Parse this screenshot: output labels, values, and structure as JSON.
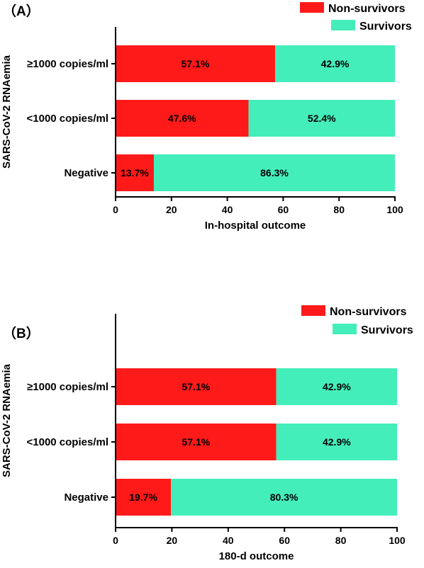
{
  "chart_data": [
    {
      "type": "bar",
      "orientation": "horizontal",
      "stacked": true,
      "panel_label": "（A）",
      "categories": [
        "≥1000 copies/ml",
        "<1000 copies/ml",
        "Negative"
      ],
      "series": [
        {
          "name": "Non-survivors",
          "color": "#ff1a1a",
          "values": [
            57.1,
            47.6,
            13.7
          ],
          "labels": [
            "57.1%",
            "47.6%",
            "13.7%"
          ]
        },
        {
          "name": "Survivors",
          "color": "#44eebb",
          "values": [
            42.9,
            52.4,
            86.3
          ],
          "labels": [
            "42.9%",
            "52.4%",
            "86.3%"
          ]
        }
      ],
      "xlabel": "In-hospital outcome",
      "ylabel": "SARS-CoV-2 RNAemia",
      "xlim": [
        0,
        100
      ],
      "xticks": [
        "0",
        "20",
        "40",
        "60",
        "80",
        "100"
      ],
      "legend_position": "top-right"
    },
    {
      "type": "bar",
      "orientation": "horizontal",
      "stacked": true,
      "panel_label": "（B）",
      "categories": [
        "≥1000 copies/ml",
        "<1000 copies/ml",
        "Negative"
      ],
      "series": [
        {
          "name": "Non-survivors",
          "color": "#ff1a1a",
          "values": [
            57.1,
            57.1,
            19.7
          ],
          "labels": [
            "57.1%",
            "57.1%",
            "19.7%"
          ]
        },
        {
          "name": "Survivors",
          "color": "#44eebb",
          "values": [
            42.9,
            42.9,
            80.3
          ],
          "labels": [
            "42.9%",
            "42.9%",
            "80.3%"
          ]
        }
      ],
      "xlabel": "180-d outcome",
      "ylabel": "SARS-CoV-2 RNAemia",
      "xlim": [
        0,
        100
      ],
      "xticks": [
        "0",
        "20",
        "40",
        "60",
        "80",
        "100"
      ],
      "legend_position": "top-right"
    }
  ]
}
